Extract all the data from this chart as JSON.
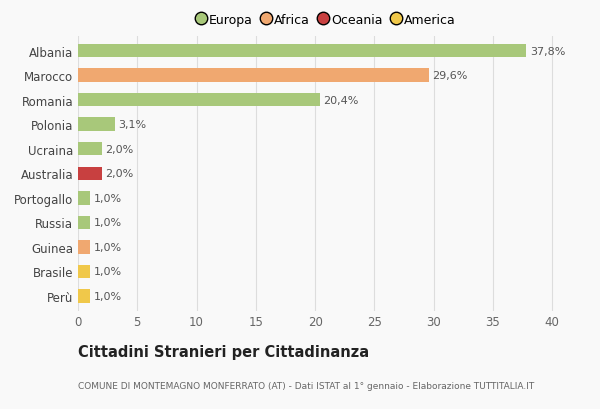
{
  "categories": [
    "Perù",
    "Brasile",
    "Guinea",
    "Russia",
    "Portogallo",
    "Australia",
    "Ucraina",
    "Polonia",
    "Romania",
    "Marocco",
    "Albania"
  ],
  "values": [
    1.0,
    1.0,
    1.0,
    1.0,
    1.0,
    2.0,
    2.0,
    3.1,
    20.4,
    29.6,
    37.8
  ],
  "labels": [
    "1,0%",
    "1,0%",
    "1,0%",
    "1,0%",
    "1,0%",
    "2,0%",
    "2,0%",
    "3,1%",
    "20,4%",
    "29,6%",
    "37,8%"
  ],
  "colors": [
    "#f0c84a",
    "#f0c84a",
    "#f0a870",
    "#a8c87a",
    "#a8c87a",
    "#c84040",
    "#a8c87a",
    "#a8c87a",
    "#a8c87a",
    "#f0a870",
    "#a8c87a"
  ],
  "legend_labels": [
    "Europa",
    "Africa",
    "Oceania",
    "America"
  ],
  "legend_colors": [
    "#a8c87a",
    "#f0a870",
    "#c84040",
    "#f0c84a"
  ],
  "title": "Cittadini Stranieri per Cittadinanza",
  "subtitle": "COMUNE DI MONTEMAGNO MONFERRATO (AT) - Dati ISTAT al 1° gennaio - Elaborazione TUTTITALIA.IT",
  "xlabel_max": 40,
  "xticks": [
    0,
    5,
    10,
    15,
    20,
    25,
    30,
    35,
    40
  ],
  "background_color": "#f9f9f9",
  "grid_color": "#dddddd",
  "bar_height": 0.55
}
